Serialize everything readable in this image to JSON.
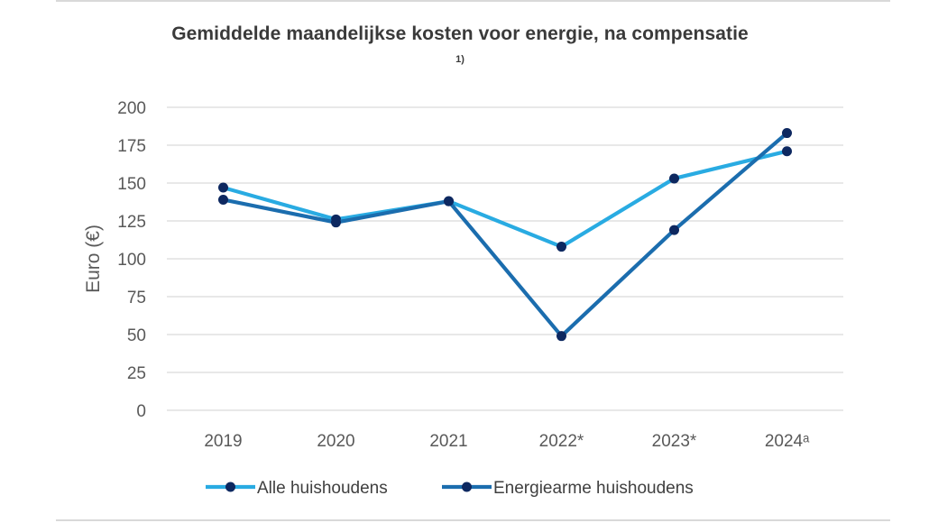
{
  "chart_data": {
    "type": "line",
    "title": "Gemiddelde maandelijkse kosten voor energie, na compensatie",
    "footnote": "1)",
    "xlabel": "",
    "ylabel": "Euro (€)",
    "categories": [
      "2019",
      "2020",
      "2021",
      "2022*",
      "2023*",
      "2024ᵃ"
    ],
    "ylim": [
      0,
      200
    ],
    "yticks": [
      0,
      25,
      50,
      75,
      100,
      125,
      150,
      175,
      200
    ],
    "grid": true,
    "legend_position": "bottom",
    "series": [
      {
        "name": "Alle huishoudens",
        "color": "#29ABE2",
        "values": [
          147,
          126,
          138,
          108,
          153,
          171
        ]
      },
      {
        "name": "Energiearme huishoudens",
        "color": "#1B6DAE",
        "values": [
          139,
          124,
          138,
          49,
          119,
          183
        ]
      }
    ],
    "marker_color": "#0D2860"
  }
}
